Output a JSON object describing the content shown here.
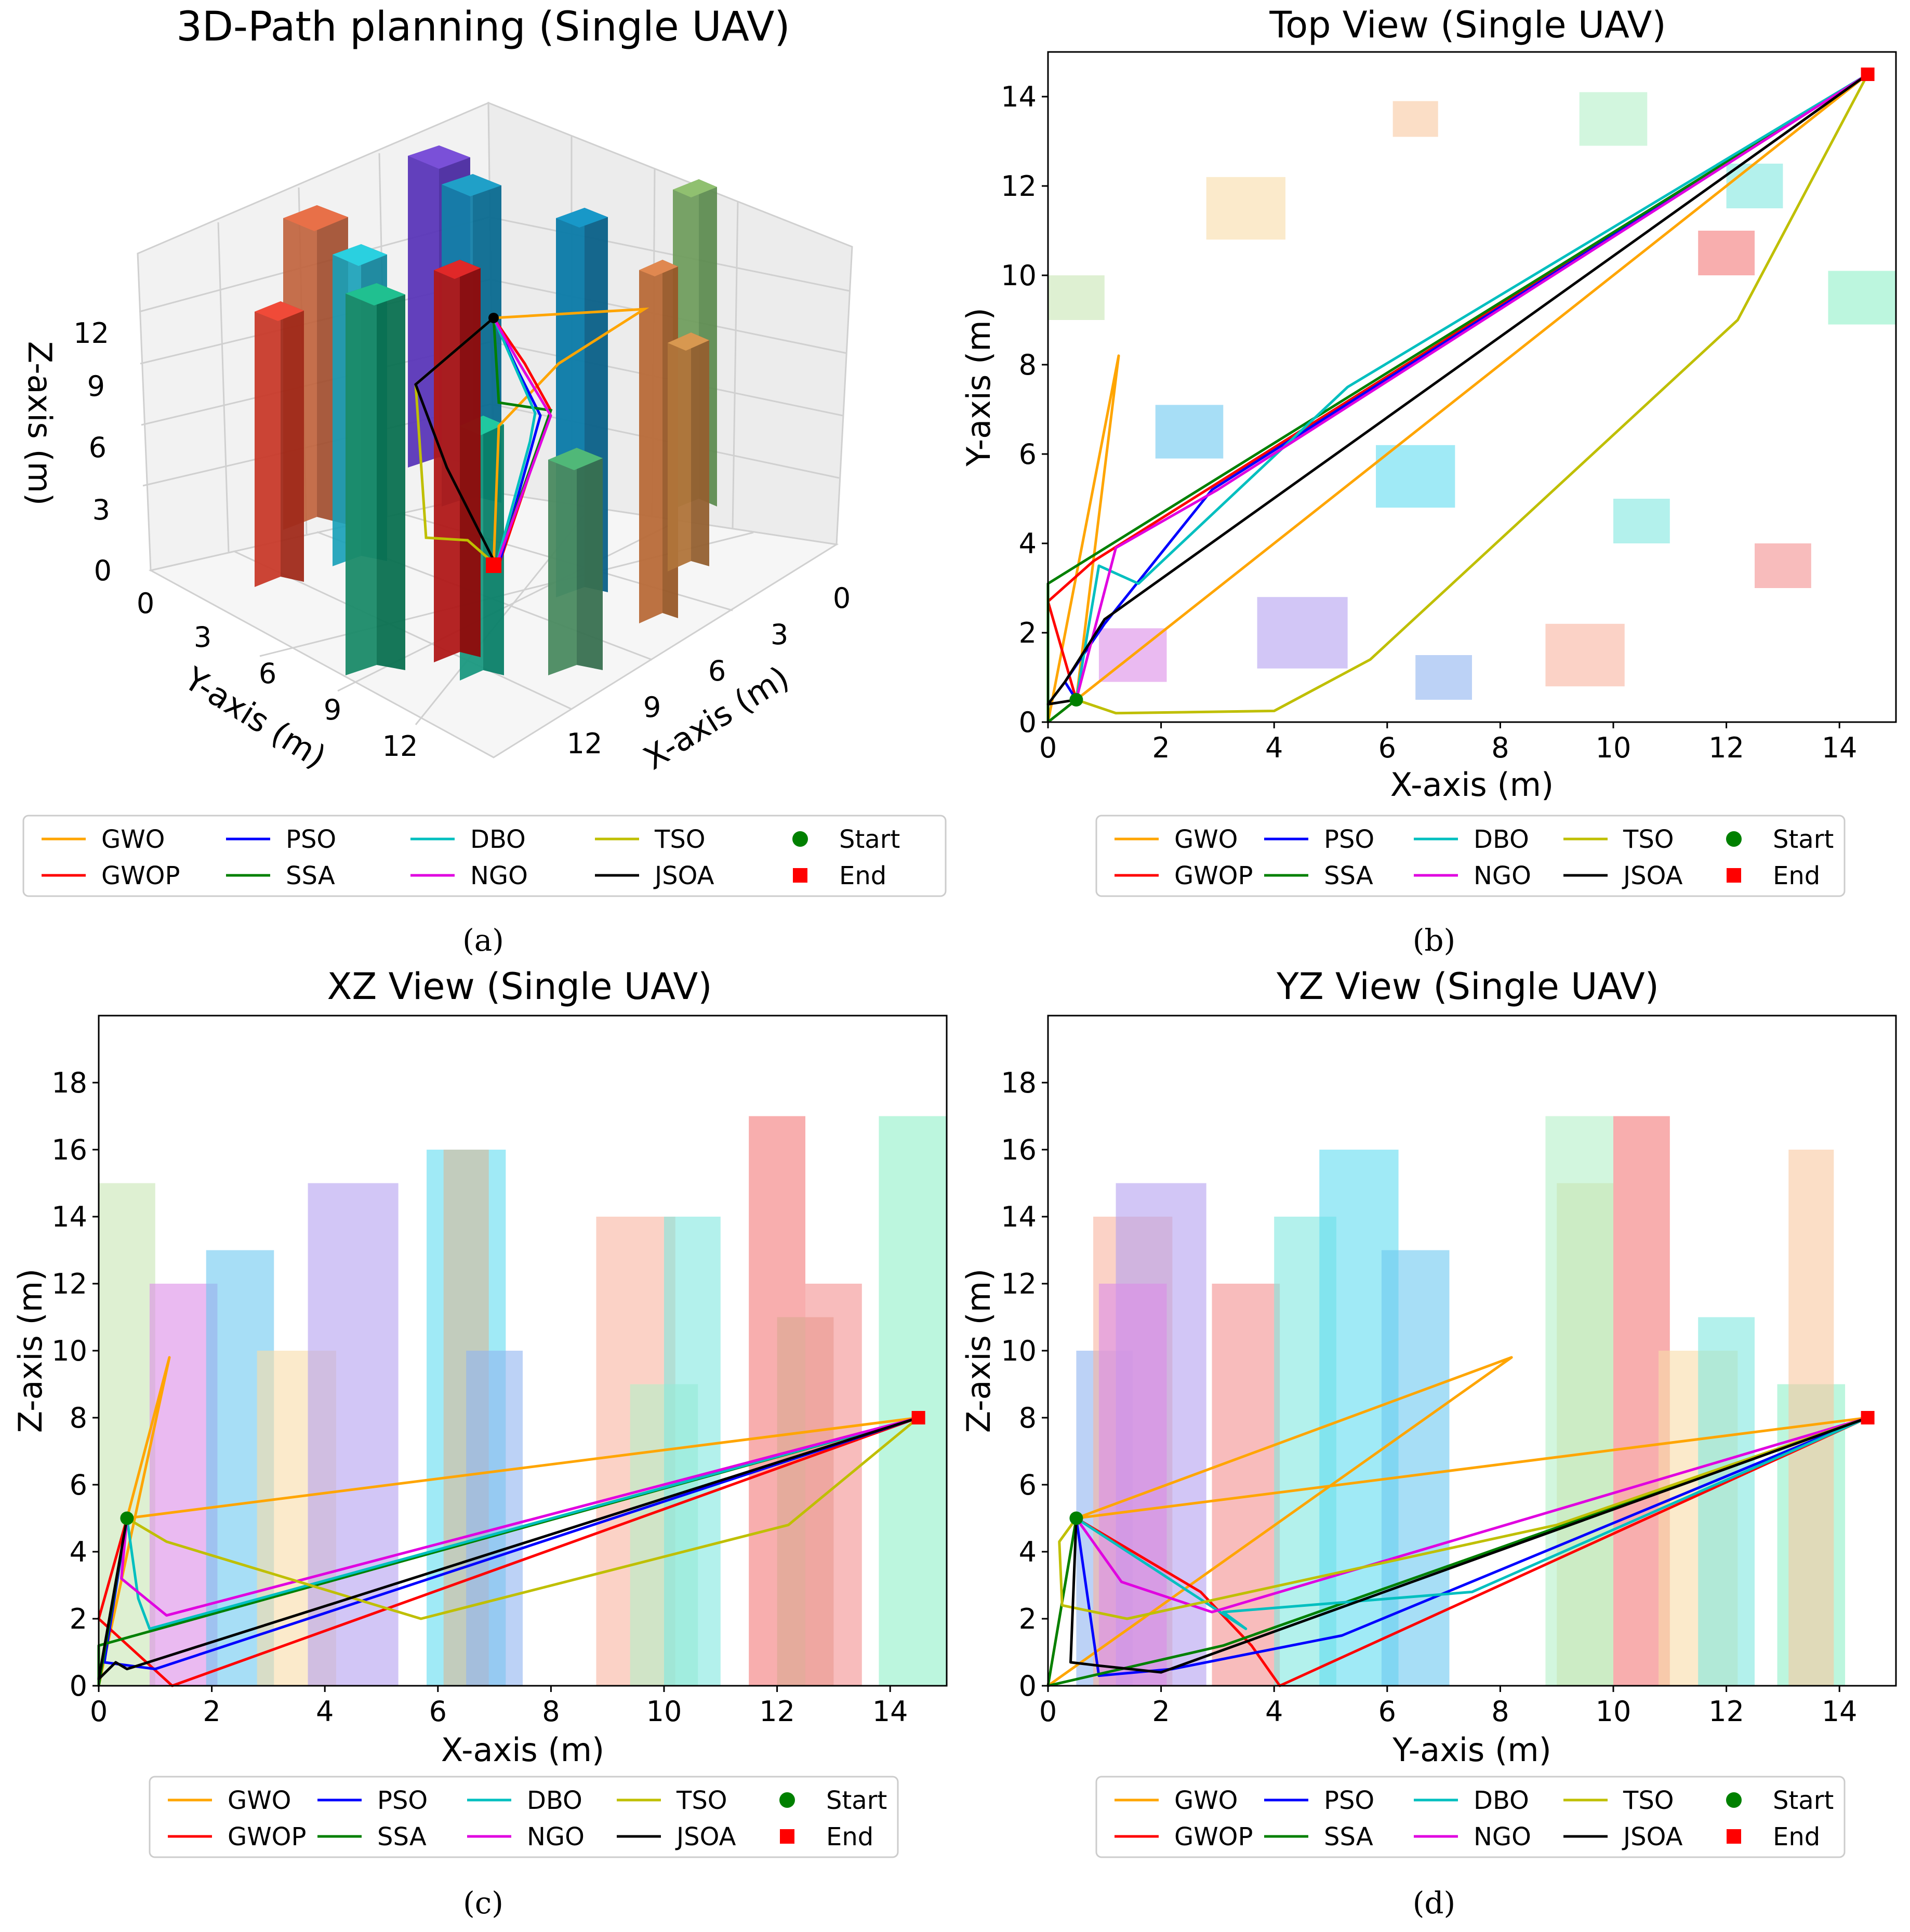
{
  "colors": {
    "GWO": "#ffa500",
    "GWOP": "#ff0000",
    "PSO": "#0000ff",
    "SSA": "#008000",
    "DBO": "#00bfbf",
    "NGO": "#e000e0",
    "TSO": "#bfbf00",
    "JSOA": "#000000",
    "Start": "#008000",
    "End": "#ff0000"
  },
  "legend": {
    "entries": [
      "GWO",
      "GWOP",
      "PSO",
      "SSA",
      "DBO",
      "NGO",
      "TSO",
      "JSOA",
      "Start",
      "End"
    ]
  },
  "chart_data": [
    {
      "id": "a",
      "type": "line",
      "title": "3D-Path planning (Single UAV)",
      "caption": "(a)",
      "xlabel": "X-axis (m)",
      "ylabel": "Y-axis (m)",
      "zlabel": "Z-axis (m)",
      "xticks": [
        "0",
        "3",
        "6",
        "9",
        "12"
      ],
      "yticks": [
        "0",
        "3",
        "6",
        "9",
        "12"
      ],
      "zticks": [
        "0",
        "3",
        "6",
        "9",
        "12"
      ]
    },
    {
      "id": "b",
      "type": "line",
      "title": "Top View (Single UAV)",
      "caption": "(b)",
      "xlabel": "X-axis (m)",
      "ylabel": "Y-axis (m)",
      "xlim": [
        0,
        15
      ],
      "ylim": [
        0,
        15
      ],
      "xticks": [
        "0",
        "2",
        "4",
        "6",
        "8",
        "10",
        "12",
        "14"
      ],
      "yticks": [
        "0",
        "2",
        "4",
        "6",
        "8",
        "10",
        "12",
        "14"
      ],
      "obstacles": [
        {
          "x": [
            0,
            1
          ],
          "y": [
            9,
            10
          ],
          "color": "#c8e6b4"
        },
        {
          "x": [
            0.9,
            2.1
          ],
          "y": [
            0.9,
            2.1
          ],
          "color": "#dc8ce8"
        },
        {
          "x": [
            1.9,
            3.1
          ],
          "y": [
            5.9,
            7.1
          ],
          "color": "#6cc8f0"
        },
        {
          "x": [
            2.8,
            4.2
          ],
          "y": [
            10.8,
            12.2
          ],
          "color": "#f8dca8"
        },
        {
          "x": [
            3.7,
            5.3
          ],
          "y": [
            1.2,
            2.8
          ],
          "color": "#b4a0f0"
        },
        {
          "x": [
            5.8,
            7.2
          ],
          "y": [
            4.8,
            6.2
          ],
          "color": "#60dcf0"
        },
        {
          "x": [
            6.5,
            7.5
          ],
          "y": [
            0.5,
            1.5
          ],
          "color": "#90b4f0"
        },
        {
          "x": [
            6.1,
            6.9
          ],
          "y": [
            13.1,
            13.9
          ],
          "color": "#f8c8a0"
        },
        {
          "x": [
            8.8,
            10.2
          ],
          "y": [
            0.8,
            2.2
          ],
          "color": "#f8b4a0"
        },
        {
          "x": [
            9.4,
            10.6
          ],
          "y": [
            12.9,
            14.1
          ],
          "color": "#b4f0c8"
        },
        {
          "x": [
            10,
            11
          ],
          "y": [
            4,
            5
          ],
          "color": "#80e8e0"
        },
        {
          "x": [
            11.5,
            12.5
          ],
          "y": [
            10,
            11
          ],
          "color": "#f47878"
        },
        {
          "x": [
            12,
            13
          ],
          "y": [
            11.5,
            12.5
          ],
          "color": "#80e8e0"
        },
        {
          "x": [
            12.5,
            13.5
          ],
          "y": [
            3,
            4
          ],
          "color": "#f49090"
        },
        {
          "x": [
            13.8,
            15
          ],
          "y": [
            8.9,
            10.1
          ],
          "color": "#90f0c8"
        }
      ],
      "series": [
        {
          "name": "GWO",
          "x": [
            0.5,
            1.25,
            0,
            0.5,
            14.5
          ],
          "y": [
            0.5,
            8.2,
            0,
            0.5,
            14.5
          ]
        },
        {
          "name": "GWOP",
          "x": [
            0.5,
            0,
            0.8,
            14.5
          ],
          "y": [
            0.5,
            2.7,
            3.6,
            14.5
          ]
        },
        {
          "name": "PSO",
          "x": [
            0.5,
            0.3,
            1.0,
            2.9,
            14.5
          ],
          "y": [
            0.5,
            0.9,
            2.2,
            5.2,
            14.5
          ]
        },
        {
          "name": "SSA",
          "x": [
            0.5,
            0,
            0,
            14.5
          ],
          "y": [
            0.5,
            0,
            3.1,
            14.5
          ]
        },
        {
          "name": "DBO",
          "x": [
            0.5,
            0.9,
            1.6,
            5.3,
            14.5
          ],
          "y": [
            0.5,
            3.5,
            3.1,
            7.5,
            14.5
          ]
        },
        {
          "name": "NGO",
          "x": [
            0.5,
            1.2,
            3.0,
            14.5
          ],
          "y": [
            0.5,
            3.9,
            5.2,
            14.5
          ]
        },
        {
          "name": "TSO",
          "x": [
            0.5,
            1.2,
            4.0,
            5.7,
            12.2,
            14.5
          ],
          "y": [
            0.5,
            0.2,
            0.25,
            1.4,
            9.0,
            14.5
          ]
        },
        {
          "name": "JSOA",
          "x": [
            0.5,
            0,
            0.3,
            1.0,
            14.5
          ],
          "y": [
            0.5,
            0.4,
            0.9,
            2.3,
            14.5
          ]
        }
      ],
      "start": {
        "x": 0.5,
        "y": 0.5
      },
      "end": {
        "x": 14.5,
        "y": 14.5
      }
    },
    {
      "id": "c",
      "type": "line",
      "title": "XZ View (Single UAV)",
      "caption": "(c)",
      "xlabel": "X-axis (m)",
      "ylabel": "Z-axis (m)",
      "xlim": [
        0,
        15
      ],
      "ylim": [
        0,
        20
      ],
      "xticks": [
        "0",
        "2",
        "4",
        "6",
        "8",
        "10",
        "12",
        "14"
      ],
      "yticks": [
        "0",
        "2",
        "4",
        "6",
        "8",
        "10",
        "12",
        "14",
        "16",
        "18"
      ],
      "obstacles": [
        {
          "x": [
            0,
            1
          ],
          "h": 15,
          "color": "#c8e6b4"
        },
        {
          "x": [
            0.9,
            2.1
          ],
          "h": 12,
          "color": "#dc8ce8"
        },
        {
          "x": [
            1.9,
            3.1
          ],
          "h": 13,
          "color": "#6cc8f0"
        },
        {
          "x": [
            2.8,
            4.2
          ],
          "h": 10,
          "color": "#f8dca8"
        },
        {
          "x": [
            3.7,
            5.3
          ],
          "h": 15,
          "color": "#b4a0f0"
        },
        {
          "x": [
            5.8,
            7.2
          ],
          "h": 16,
          "color": "#60dcf0"
        },
        {
          "x": [
            6.1,
            6.9
          ],
          "h": 16,
          "color": "#d8b898"
        },
        {
          "x": [
            6.5,
            7.5
          ],
          "h": 10,
          "color": "#90b4f0"
        },
        {
          "x": [
            8.8,
            10.2
          ],
          "h": 14,
          "color": "#f8b4a0"
        },
        {
          "x": [
            9.4,
            10.6
          ],
          "h": 9,
          "color": "#b4f0c8"
        },
        {
          "x": [
            10,
            11
          ],
          "h": 14,
          "color": "#80e8e0"
        },
        {
          "x": [
            11.5,
            12.5
          ],
          "h": 17,
          "color": "#f47878"
        },
        {
          "x": [
            12,
            13
          ],
          "h": 11,
          "color": "#d8a890"
        },
        {
          "x": [
            12.5,
            13.5
          ],
          "h": 12,
          "color": "#f49090"
        },
        {
          "x": [
            13.8,
            15
          ],
          "h": 17,
          "color": "#90f0c8"
        }
      ],
      "series": [
        {
          "name": "GWO",
          "x": [
            0.5,
            1.25,
            0,
            0.5,
            14.5
          ],
          "y": [
            5,
            9.8,
            0,
            5,
            8
          ]
        },
        {
          "name": "GWOP",
          "x": [
            0.5,
            0,
            1.3,
            14.5
          ],
          "y": [
            5,
            2,
            0,
            8
          ]
        },
        {
          "name": "PSO",
          "x": [
            0.5,
            0.1,
            1.0,
            14.5
          ],
          "y": [
            5,
            0.7,
            0.5,
            8
          ]
        },
        {
          "name": "SSA",
          "x": [
            0.5,
            0,
            0,
            14.5
          ],
          "y": [
            5,
            0,
            1.2,
            8
          ]
        },
        {
          "name": "DBO",
          "x": [
            0.5,
            0.7,
            0.9,
            14.5
          ],
          "y": [
            5,
            2.6,
            1.7,
            8
          ]
        },
        {
          "name": "NGO",
          "x": [
            0.5,
            0.4,
            1.2,
            14.5
          ],
          "y": [
            5,
            3.2,
            2.1,
            8
          ]
        },
        {
          "name": "TSO",
          "x": [
            0.5,
            1.2,
            5.7,
            12.2,
            14.5
          ],
          "y": [
            5,
            4.3,
            2.0,
            4.8,
            8
          ]
        },
        {
          "name": "JSOA",
          "x": [
            0.5,
            0,
            0.3,
            0.5,
            14.5
          ],
          "y": [
            5,
            0.2,
            0.7,
            0.5,
            8
          ]
        }
      ],
      "start": {
        "x": 0.5,
        "y": 5
      },
      "end": {
        "x": 14.5,
        "y": 8
      }
    },
    {
      "id": "d",
      "type": "line",
      "title": "YZ View (Single UAV)",
      "caption": "(d)",
      "xlabel": "Y-axis (m)",
      "ylabel": "Z-axis (m)",
      "xlim": [
        0,
        15
      ],
      "ylim": [
        0,
        20
      ],
      "xticks": [
        "0",
        "2",
        "4",
        "6",
        "8",
        "10",
        "12",
        "14"
      ],
      "yticks": [
        "0",
        "2",
        "4",
        "6",
        "8",
        "10",
        "12",
        "14",
        "16",
        "18"
      ],
      "obstacles": [
        {
          "x": [
            0.5,
            1.5
          ],
          "h": 10,
          "color": "#90b4f0"
        },
        {
          "x": [
            0.8,
            2.2
          ],
          "h": 14,
          "color": "#f8b4a0"
        },
        {
          "x": [
            1.2,
            2.8
          ],
          "h": 15,
          "color": "#b4a0f0"
        },
        {
          "x": [
            0.9,
            2.1
          ],
          "h": 12,
          "color": "#dc8ce8"
        },
        {
          "x": [
            2.9,
            4.1
          ],
          "h": 12,
          "color": "#f49090"
        },
        {
          "x": [
            4.0,
            5.1
          ],
          "h": 14,
          "color": "#80e8e0"
        },
        {
          "x": [
            4.8,
            6.2
          ],
          "h": 16,
          "color": "#60dcf0"
        },
        {
          "x": [
            5.9,
            7.1
          ],
          "h": 13,
          "color": "#6cc8f0"
        },
        {
          "x": [
            8.8,
            10.0
          ],
          "h": 17,
          "color": "#b4f0c8"
        },
        {
          "x": [
            9.0,
            10.0
          ],
          "h": 15,
          "color": "#c8e6b4"
        },
        {
          "x": [
            10,
            11
          ],
          "h": 17,
          "color": "#f47878"
        },
        {
          "x": [
            10.8,
            12.2
          ],
          "h": 10,
          "color": "#f8dca8"
        },
        {
          "x": [
            11.5,
            12.5
          ],
          "h": 11,
          "color": "#80e8e0"
        },
        {
          "x": [
            12.9,
            14.1
          ],
          "h": 9,
          "color": "#90f0c8"
        },
        {
          "x": [
            13.1,
            13.9
          ],
          "h": 16,
          "color": "#f8c8a0"
        }
      ],
      "series": [
        {
          "name": "GWO",
          "x": [
            0.5,
            8.2,
            0,
            0.5,
            14.5
          ],
          "y": [
            5,
            9.8,
            0,
            5,
            8
          ]
        },
        {
          "name": "GWOP",
          "x": [
            0.5,
            2.7,
            3.6,
            4.1,
            14.5
          ],
          "y": [
            5,
            2.8,
            1.2,
            0,
            8
          ]
        },
        {
          "name": "PSO",
          "x": [
            0.5,
            0.9,
            2.2,
            5.2,
            14.5
          ],
          "y": [
            5,
            0.3,
            0.5,
            1.5,
            8
          ]
        },
        {
          "name": "SSA",
          "x": [
            0.5,
            0,
            3.1,
            14.5
          ],
          "y": [
            5,
            0,
            1.2,
            8
          ]
        },
        {
          "name": "DBO",
          "x": [
            0.5,
            3.5,
            3.1,
            7.5,
            14.5
          ],
          "y": [
            5,
            1.7,
            2.2,
            2.8,
            8
          ]
        },
        {
          "name": "NGO",
          "x": [
            0.5,
            1.3,
            2.9,
            14.5
          ],
          "y": [
            5,
            3.1,
            2.2,
            8
          ]
        },
        {
          "name": "TSO",
          "x": [
            0.5,
            0.2,
            0.25,
            1.4,
            9.0,
            14.5
          ],
          "y": [
            5,
            4.3,
            2.4,
            2.0,
            4.8,
            8
          ]
        },
        {
          "name": "JSOA",
          "x": [
            0.5,
            0.4,
            0.9,
            2.0,
            14.5
          ],
          "y": [
            5,
            0.7,
            0.6,
            0.4,
            8
          ]
        }
      ],
      "start": {
        "x": 0.5,
        "y": 5
      },
      "end": {
        "x": 14.5,
        "y": 8
      }
    }
  ]
}
